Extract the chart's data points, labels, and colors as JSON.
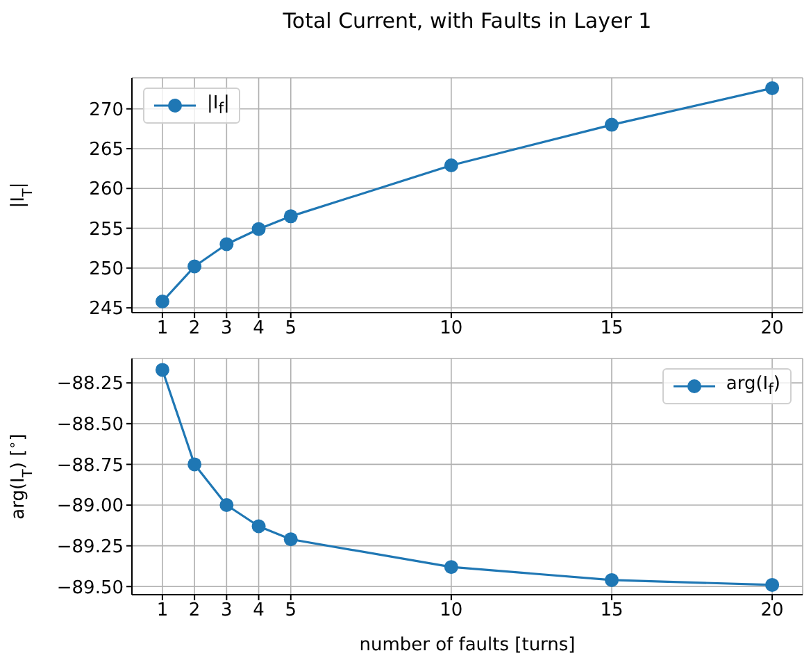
{
  "chart_data": [
    {
      "type": "line",
      "title": "Total Current, with Faults in Layer 1",
      "ylabel": "|I$_{T}$|",
      "x": [
        1,
        2,
        3,
        4,
        5,
        10,
        15,
        20
      ],
      "series": [
        {
          "name": "|I$_{f}$|",
          "color": "#1f77b4",
          "values": [
            245.8,
            250.2,
            253.0,
            254.9,
            256.5,
            262.9,
            268.0,
            272.6
          ]
        }
      ],
      "xlim": [
        0.05,
        20.95
      ],
      "xticks": [
        1,
        2,
        3,
        4,
        5,
        10,
        15,
        20
      ],
      "ylim": [
        244.4,
        273.9
      ],
      "yticks": [
        245,
        250,
        255,
        260,
        265,
        270
      ],
      "grid": true,
      "legend": "top left",
      "marker": "circle",
      "line_style": "solid"
    },
    {
      "type": "line",
      "xlabel": "number of faults [turns]",
      "ylabel": "arg(I$_{T}$) [$^{∘}$]",
      "x": [
        1,
        2,
        3,
        4,
        5,
        10,
        15,
        20
      ],
      "series": [
        {
          "name": "arg(I$_{f}$)",
          "color": "#1f77b4",
          "values": [
            -88.17,
            -88.75,
            -89.0,
            -89.13,
            -89.21,
            -89.38,
            -89.46,
            -89.49
          ]
        }
      ],
      "xlim": [
        0.05,
        20.95
      ],
      "xticks": [
        1,
        2,
        3,
        4,
        5,
        10,
        15,
        20
      ],
      "ylim": [
        -89.55,
        -88.1
      ],
      "yticks": [
        {
          "value": -88.25,
          "label": "−88.25"
        },
        {
          "value": -88.5,
          "label": "−88.50"
        },
        {
          "value": -88.75,
          "label": "−88.75"
        },
        {
          "value": -89.0,
          "label": "−89.00"
        },
        {
          "value": -89.25,
          "label": "−89.25"
        },
        {
          "value": -89.5,
          "label": "−89.50"
        }
      ],
      "grid": true,
      "legend": "top right",
      "marker": "circle",
      "line_style": "solid"
    }
  ]
}
